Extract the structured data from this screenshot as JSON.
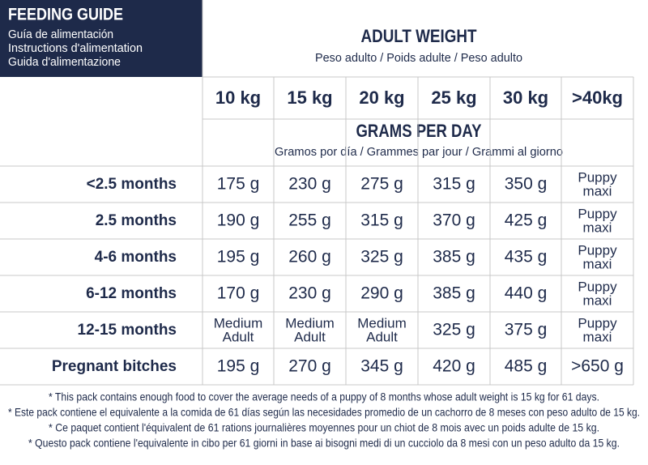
{
  "header": {
    "title": "FEEDING GUIDE",
    "subtitles": [
      "Guía de alimentación",
      "Instructions d'alimentation",
      "Guida d'alimentazione"
    ]
  },
  "adult_weight": {
    "title": "ADULT WEIGHT",
    "subtitle": "Peso adulto / Poids adulte / Peso adulto"
  },
  "weights": [
    "10 kg",
    "15 kg",
    "20 kg",
    "25 kg",
    "30 kg",
    ">40kg"
  ],
  "grams_per_day": {
    "title": "GRAMS PER DAY",
    "subtitle": "Gramos por día / Grammes par jour / Grammi al giorno"
  },
  "rows": [
    {
      "label": "<2.5 months",
      "cells": [
        "175 g",
        "230 g",
        "275 g",
        "315 g",
        "350 g",
        [
          "Puppy",
          "maxi"
        ]
      ]
    },
    {
      "label": "2.5 months",
      "cells": [
        "190 g",
        "255 g",
        "315 g",
        "370 g",
        "425 g",
        [
          "Puppy",
          "maxi"
        ]
      ]
    },
    {
      "label": "4-6 months",
      "cells": [
        "195 g",
        "260 g",
        "325 g",
        "385 g",
        "435 g",
        [
          "Puppy",
          "maxi"
        ]
      ]
    },
    {
      "label": "6-12 months",
      "cells": [
        "170 g",
        "230 g",
        "290 g",
        "385 g",
        "440 g",
        [
          "Puppy",
          "maxi"
        ]
      ]
    },
    {
      "label": "12-15 months",
      "cells": [
        [
          "Medium",
          "Adult"
        ],
        [
          "Medium",
          "Adult"
        ],
        [
          "Medium",
          "Adult"
        ],
        "325 g",
        "375 g",
        [
          "Puppy",
          "maxi"
        ]
      ]
    },
    {
      "label": "Pregnant bitches",
      "cells": [
        "195 g",
        "270 g",
        "345 g",
        "420 g",
        "485 g",
        ">650 g"
      ]
    }
  ],
  "footnotes": [
    "* This pack contains enough food to cover the average needs of a puppy of 8 months whose adult weight is 15 kg for 61 days.",
    "* Este pack contiene el equivalente a la comida de 61 días según las necesidades promedio de un cachorro de 8 meses con peso adulto de 15 kg.",
    "* Ce paquet contient l'équivalent de 61 rations journalières moyennes pour un chiot de 8 mois avec un poids adulte de 15 kg.",
    "* Questo pack contiene l'equivalente in cibo per 61 giorni in base ai bisogni medi di un cucciolo da 8 mesi con un peso adulto da 15 kg."
  ]
}
